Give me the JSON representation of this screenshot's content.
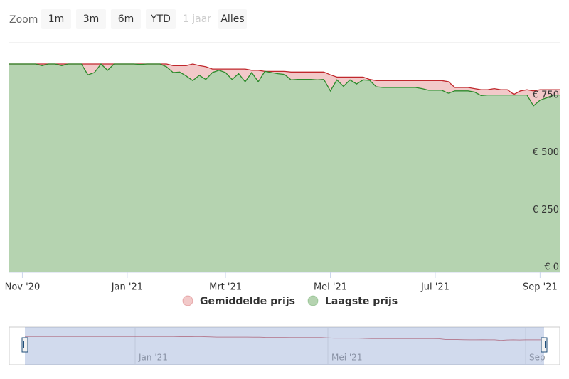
{
  "range_selector": {
    "label": "Zoom",
    "buttons": [
      "1m",
      "3m",
      "6m",
      "YTD",
      "1 jaar",
      "Alles"
    ],
    "disabled": [
      false,
      false,
      false,
      false,
      true,
      false
    ]
  },
  "chart_data": {
    "type": "area",
    "categories": [
      null,
      null,
      "Nov '20",
      null,
      null,
      null,
      null,
      null,
      null,
      null,
      null,
      null,
      null,
      null,
      null,
      null,
      null,
      null,
      "Jan '21",
      null,
      null,
      null,
      null,
      null,
      null,
      null,
      null,
      null,
      null,
      null,
      null,
      null,
      null,
      "Mrt '21",
      null,
      null,
      null,
      null,
      null,
      null,
      null,
      null,
      null,
      null,
      null,
      null,
      null,
      null,
      null,
      "Mei '21",
      null,
      null,
      null,
      null,
      null,
      null,
      null,
      null,
      null,
      null,
      null,
      null,
      null,
      null,
      null,
      "Jul '21",
      null,
      null,
      null,
      null,
      null,
      null,
      null,
      null,
      null,
      null,
      null,
      null,
      null,
      null,
      null,
      "Sep '21",
      null,
      null,
      null
    ],
    "series": [
      {
        "name": "Gemiddelde prijs",
        "color": "#c0282d",
        "fill_color": "#f2c9c9",
        "values": [
          907,
          907,
          907,
          907,
          907,
          907,
          907,
          907,
          907,
          907,
          907,
          907,
          907,
          907,
          907,
          907,
          907,
          907,
          907,
          907,
          907,
          907,
          907,
          907,
          907,
          900,
          900,
          900,
          907,
          900,
          895,
          885,
          885,
          885,
          885,
          885,
          885,
          880,
          880,
          875,
          875,
          875,
          875,
          872,
          872,
          872,
          872,
          872,
          872,
          860,
          850,
          850,
          850,
          850,
          850,
          840,
          835,
          835,
          835,
          835,
          835,
          835,
          835,
          835,
          835,
          835,
          835,
          830,
          805,
          805,
          805,
          800,
          795,
          795,
          800,
          795,
          795,
          775,
          790,
          795,
          790,
          795,
          795,
          795,
          795
        ]
      },
      {
        "name": "Laagste prijs",
        "color": "#2a8a2a",
        "fill_color": "#b5d3b0",
        "values": [
          907,
          907,
          907,
          907,
          907,
          900,
          907,
          907,
          900,
          907,
          907,
          907,
          860,
          870,
          907,
          880,
          907,
          907,
          907,
          907,
          905,
          907,
          907,
          907,
          895,
          870,
          872,
          855,
          835,
          858,
          840,
          870,
          880,
          870,
          840,
          865,
          830,
          870,
          830,
          875,
          870,
          865,
          862,
          838,
          840,
          840,
          840,
          838,
          840,
          790,
          838,
          810,
          838,
          820,
          838,
          836,
          808,
          805,
          805,
          805,
          805,
          805,
          805,
          800,
          793,
          793,
          793,
          780,
          790,
          790,
          790,
          785,
          770,
          772,
          772,
          772,
          772,
          772,
          772,
          772,
          725,
          750,
          760,
          772,
          772
        ]
      }
    ],
    "ylim": [
      0,
      1000
    ],
    "yticks": [
      {
        "value": 0,
        "label": "€ 0"
      },
      {
        "value": 250,
        "label": "€ 250"
      },
      {
        "value": 500,
        "label": "€ 500"
      },
      {
        "value": 750,
        "label": "€ 750"
      }
    ],
    "grid": true,
    "legend": "bottom",
    "navigator": {
      "labels": [
        "Jan '21",
        "Mei '21",
        "Sep"
      ]
    }
  }
}
